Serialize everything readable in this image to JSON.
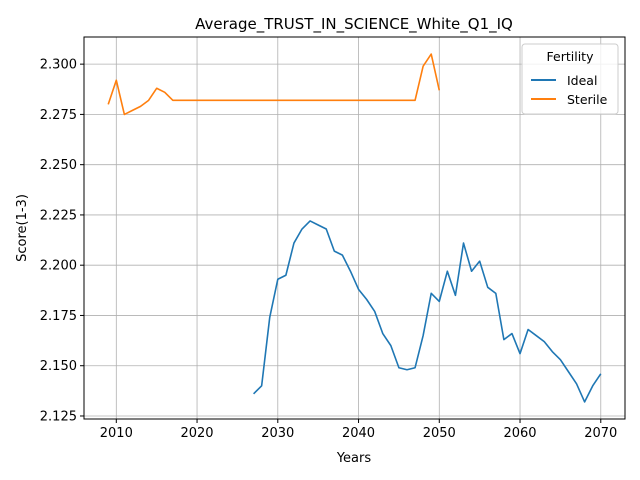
{
  "chart_data": {
    "type": "line",
    "title": "Average_TRUST_IN_SCIENCE_White_Q1_IQ",
    "xlabel": "Years",
    "ylabel": "Score(1-3)",
    "xlim": [
      2006,
      2073
    ],
    "ylim": [
      2.1235,
      2.3135
    ],
    "xticks": [
      2010,
      2020,
      2030,
      2040,
      2050,
      2060,
      2070
    ],
    "xtick_labels": [
      "2010",
      "2020",
      "2030",
      "2040",
      "2050",
      "2060",
      "2070"
    ],
    "yticks": [
      2.125,
      2.15,
      2.175,
      2.2,
      2.225,
      2.25,
      2.275,
      2.3
    ],
    "ytick_labels": [
      "2.125",
      "2.150",
      "2.175",
      "2.200",
      "2.225",
      "2.250",
      "2.275",
      "2.300"
    ],
    "grid": true,
    "legend": {
      "title": "Fertility",
      "position": "top-right"
    },
    "series": [
      {
        "name": "Ideal",
        "color": "#1f77b4",
        "x": [
          2027,
          2028,
          2029,
          2030,
          2031,
          2032,
          2033,
          2034,
          2035,
          2036,
          2037,
          2038,
          2039,
          2040,
          2041,
          2042,
          2043,
          2044,
          2045,
          2046,
          2047,
          2048,
          2049,
          2050,
          2051,
          2052,
          2053,
          2054,
          2055,
          2056,
          2057,
          2058,
          2059,
          2060,
          2061,
          2062,
          2063,
          2064,
          2065,
          2066,
          2067,
          2068,
          2069,
          2070
        ],
        "values": [
          2.136,
          2.14,
          2.174,
          2.193,
          2.195,
          2.211,
          2.218,
          2.222,
          2.22,
          2.218,
          2.207,
          2.205,
          2.197,
          2.188,
          2.183,
          2.177,
          2.166,
          2.16,
          2.149,
          2.148,
          2.149,
          2.165,
          2.186,
          2.182,
          2.197,
          2.185,
          2.211,
          2.197,
          2.202,
          2.189,
          2.186,
          2.163,
          2.166,
          2.156,
          2.168,
          2.165,
          2.162,
          2.157,
          2.153,
          2.147,
          2.141,
          2.132,
          2.14,
          2.146
        ]
      },
      {
        "name": "Sterile",
        "color": "#ff7f0e",
        "x": [
          2009,
          2010,
          2011,
          2012,
          2013,
          2014,
          2015,
          2016,
          2017,
          2018,
          2019,
          2020,
          2021,
          2022,
          2023,
          2024,
          2025,
          2026,
          2027,
          2028,
          2029,
          2030,
          2031,
          2032,
          2033,
          2034,
          2035,
          2036,
          2037,
          2038,
          2039,
          2040,
          2041,
          2042,
          2043,
          2044,
          2045,
          2046,
          2047,
          2048,
          2049,
          2050
        ],
        "values": [
          2.28,
          2.292,
          2.275,
          2.277,
          2.279,
          2.282,
          2.288,
          2.286,
          2.282,
          2.282,
          2.282,
          2.282,
          2.282,
          2.282,
          2.282,
          2.282,
          2.282,
          2.282,
          2.282,
          2.282,
          2.282,
          2.282,
          2.282,
          2.282,
          2.282,
          2.282,
          2.282,
          2.282,
          2.282,
          2.282,
          2.282,
          2.282,
          2.282,
          2.282,
          2.282,
          2.282,
          2.282,
          2.282,
          2.282,
          2.299,
          2.305,
          2.287
        ]
      }
    ]
  }
}
